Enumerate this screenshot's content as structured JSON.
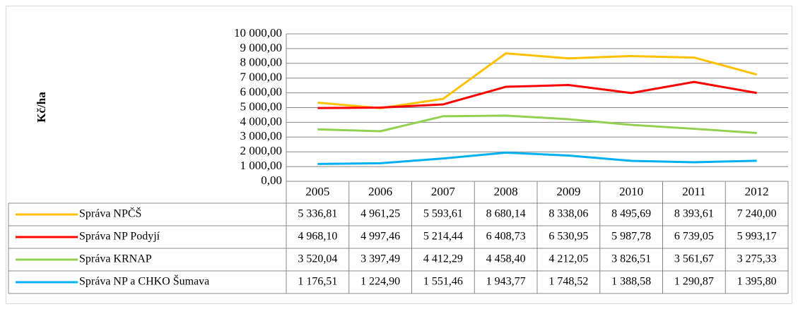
{
  "chart_data": {
    "type": "line",
    "y_label": "Kč/ha",
    "categories": [
      "2005",
      "2006",
      "2007",
      "2008",
      "2009",
      "2010",
      "2011",
      "2012"
    ],
    "series": [
      {
        "name": "Správa NPČŠ",
        "color": "#FFC000",
        "values": [
          5336.81,
          4961.25,
          5593.61,
          8680.14,
          8338.06,
          8495.69,
          8393.61,
          7240.0
        ],
        "value_labels": [
          "5 336,81",
          "4 961,25",
          "5 593,61",
          "8 680,14",
          "8 338,06",
          "8 495,69",
          "8 393,61",
          "7 240,00"
        ]
      },
      {
        "name": "Správa NP Podyjí",
        "color": "#FF0000",
        "values": [
          4968.1,
          4997.46,
          5214.44,
          6408.73,
          6530.95,
          5987.78,
          6739.05,
          5993.17
        ],
        "value_labels": [
          "4 968,10",
          "4 997,46",
          "5 214,44",
          "6 408,73",
          "6 530,95",
          "5 987,78",
          "6 739,05",
          "5 993,17"
        ]
      },
      {
        "name": "Správa KRNAP",
        "color": "#92D050",
        "values": [
          3520.04,
          3397.49,
          4412.29,
          4458.4,
          4212.05,
          3826.51,
          3561.67,
          3275.33
        ],
        "value_labels": [
          "3 520,04",
          "3 397,49",
          "4 412,29",
          "4 458,40",
          "4 212,05",
          "3 826,51",
          "3 561,67",
          "3 275,33"
        ]
      },
      {
        "name": "Správa NP a CHKO Šumava",
        "color": "#00B0F0",
        "values": [
          1176.51,
          1224.9,
          1551.46,
          1943.77,
          1748.52,
          1388.58,
          1290.87,
          1395.8
        ],
        "value_labels": [
          "1 176,51",
          "1 224,90",
          "1 551,46",
          "1 943,77",
          "1 748,52",
          "1 388,58",
          "1 290,87",
          "1 395,80"
        ]
      }
    ],
    "ylim": [
      0,
      10000
    ],
    "yticks": [
      {
        "value": 0,
        "label": "0,00"
      },
      {
        "value": 1000,
        "label": "1 000,00"
      },
      {
        "value": 2000,
        "label": "2 000,00"
      },
      {
        "value": 3000,
        "label": "3 000,00"
      },
      {
        "value": 4000,
        "label": "4 000,00"
      },
      {
        "value": 5000,
        "label": "5 000,00"
      },
      {
        "value": 6000,
        "label": "6 000,00"
      },
      {
        "value": 7000,
        "label": "7 000,00"
      },
      {
        "value": 8000,
        "label": "8 000,00"
      },
      {
        "value": 9000,
        "label": "9 000,00"
      },
      {
        "value": 10000,
        "label": "10 000,00"
      }
    ],
    "grid": true
  }
}
